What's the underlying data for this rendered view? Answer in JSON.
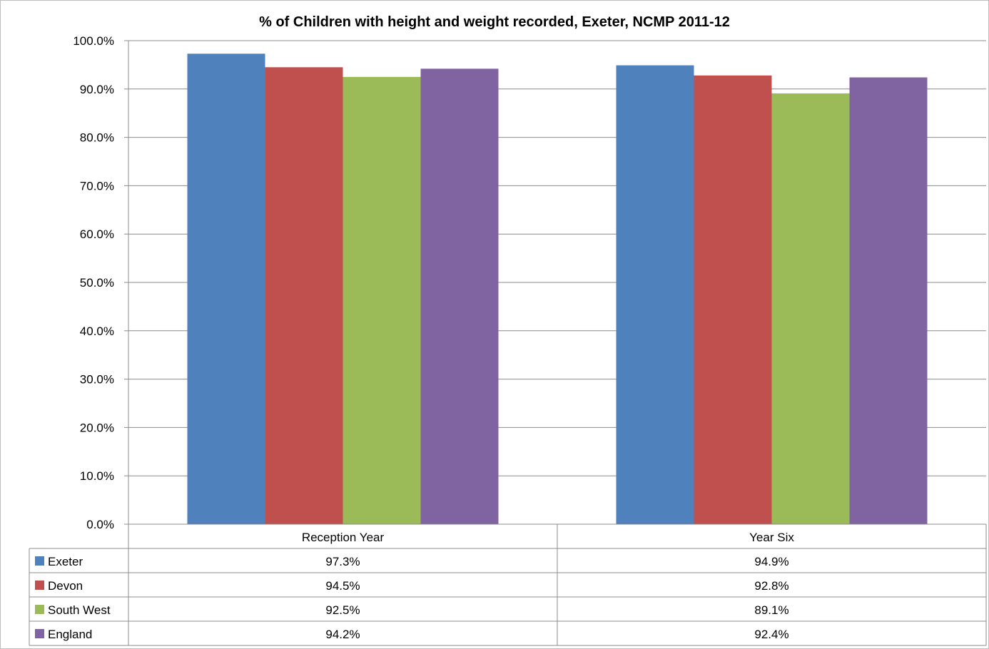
{
  "chart_data": {
    "type": "bar",
    "title": "% of Children with height and weight recorded, Exeter, NCMP 2011-12",
    "categories": [
      "Reception Year",
      "Year Six"
    ],
    "series": [
      {
        "name": "Exeter",
        "color": "#4f81bd",
        "values": [
          97.3,
          94.9
        ],
        "labels": [
          "97.3%",
          "94.9%"
        ]
      },
      {
        "name": "Devon",
        "color": "#c0504d",
        "values": [
          94.5,
          92.8
        ],
        "labels": [
          "94.5%",
          "92.8%"
        ]
      },
      {
        "name": "South West",
        "color": "#9bbb59",
        "values": [
          92.5,
          89.1
        ],
        "labels": [
          "92.5%",
          "89.1%"
        ]
      },
      {
        "name": "England",
        "color": "#8064a2",
        "values": [
          94.2,
          92.4
        ],
        "labels": [
          "94.2%",
          "92.4%"
        ]
      }
    ],
    "ylim": [
      0,
      100
    ],
    "yticks": [
      "0.0%",
      "10.0%",
      "20.0%",
      "30.0%",
      "40.0%",
      "50.0%",
      "60.0%",
      "70.0%",
      "80.0%",
      "90.0%",
      "100.0%"
    ],
    "grid": true,
    "legend": "data-table"
  }
}
